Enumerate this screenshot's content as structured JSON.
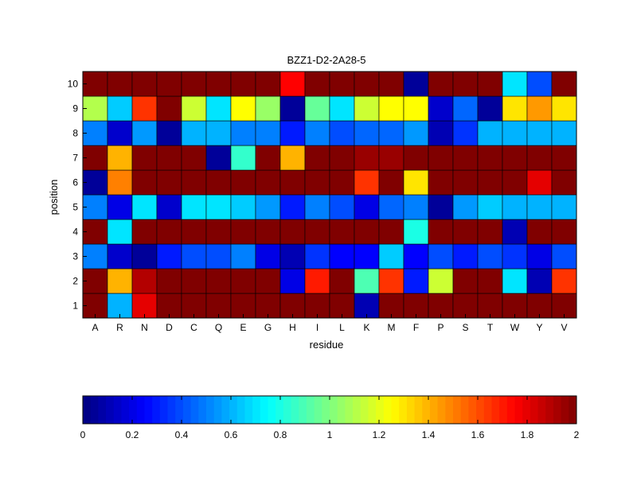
{
  "chart_data": {
    "type": "heatmap",
    "title": "BZZ1-D2-2A28-5",
    "xlabel": "residue",
    "ylabel": "position",
    "x_categories": [
      "A",
      "R",
      "N",
      "D",
      "C",
      "Q",
      "E",
      "G",
      "H",
      "I",
      "L",
      "K",
      "M",
      "F",
      "P",
      "S",
      "T",
      "W",
      "Y",
      "V"
    ],
    "y_categories": [
      "1",
      "2",
      "3",
      "4",
      "5",
      "6",
      "7",
      "8",
      "9",
      "10"
    ],
    "values": [
      [
        2.0,
        0.6,
        1.8,
        2.0,
        2.0,
        2.0,
        2.0,
        2.0,
        2.0,
        2.0,
        2.0,
        0.1,
        2.0,
        2.0,
        2.0,
        2.0,
        2.0,
        2.0,
        2.0,
        2.0
      ],
      [
        2.0,
        1.4,
        1.9,
        2.0,
        2.0,
        2.0,
        2.0,
        2.0,
        0.2,
        1.7,
        2.0,
        0.9,
        1.65,
        0.3,
        1.15,
        2.0,
        2.0,
        0.7,
        0.1,
        1.65
      ],
      [
        0.5,
        0.15,
        0.05,
        0.3,
        0.4,
        0.4,
        0.5,
        0.2,
        0.1,
        0.35,
        0.25,
        0.25,
        0.65,
        0.25,
        0.4,
        0.3,
        0.4,
        0.35,
        0.2,
        0.4
      ],
      [
        2.0,
        0.7,
        2.0,
        2.0,
        2.0,
        2.0,
        2.0,
        2.0,
        2.0,
        2.0,
        2.0,
        2.0,
        2.0,
        0.8,
        2.0,
        2.0,
        2.0,
        0.1,
        2.0,
        2.0
      ],
      [
        0.5,
        0.2,
        0.7,
        0.15,
        0.7,
        0.7,
        0.65,
        0.55,
        0.3,
        0.5,
        0.4,
        0.2,
        0.45,
        0.5,
        0.05,
        0.55,
        0.65,
        0.6,
        0.6,
        0.6
      ],
      [
        0.05,
        1.5,
        2.0,
        2.0,
        2.0,
        2.0,
        2.0,
        2.0,
        2.0,
        2.0,
        2.0,
        1.65,
        2.0,
        1.3,
        2.0,
        2.0,
        2.0,
        2.0,
        1.8,
        2.0
      ],
      [
        2.0,
        1.4,
        2.0,
        2.0,
        2.0,
        0.05,
        0.85,
        2.0,
        1.4,
        2.0,
        2.0,
        1.95,
        1.95,
        2.0,
        2.0,
        2.0,
        2.0,
        2.0,
        2.0,
        2.0
      ],
      [
        0.5,
        0.15,
        0.55,
        0.05,
        0.6,
        0.6,
        0.5,
        0.5,
        0.3,
        0.5,
        0.4,
        0.45,
        0.45,
        0.55,
        0.1,
        0.35,
        0.6,
        0.6,
        0.6,
        0.6
      ],
      [
        1.1,
        0.65,
        1.65,
        2.0,
        1.15,
        0.7,
        1.25,
        1.05,
        0.05,
        0.95,
        0.7,
        1.15,
        1.25,
        1.25,
        0.15,
        0.45,
        0.05,
        1.3,
        1.45,
        1.3
      ],
      [
        2.0,
        2.0,
        2.0,
        2.0,
        2.0,
        2.0,
        2.0,
        2.0,
        1.75,
        2.0,
        2.0,
        2.0,
        2.0,
        0.05,
        2.0,
        2.0,
        2.0,
        0.7,
        0.4,
        2.0
      ]
    ],
    "colorbar": {
      "colormap": "jet",
      "range": [
        0,
        2
      ],
      "ticks": [
        "0",
        "0.2",
        "0.4",
        "0.6",
        "0.8",
        "1",
        "1.2",
        "1.4",
        "1.6",
        "1.8",
        "2"
      ],
      "orientation": "horizontal",
      "position": "bottom"
    }
  }
}
